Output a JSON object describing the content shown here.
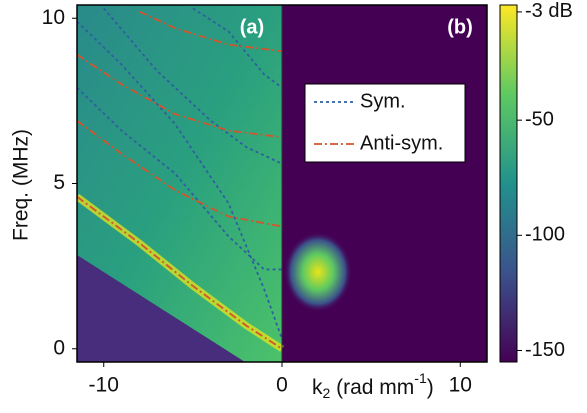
{
  "chart_data": {
    "type": "dispersion-map",
    "panel_labels": [
      "(a)",
      "(b)"
    ],
    "ylabel": "Freq. (MHz)",
    "xlabel": [
      "k",
      "2",
      " (rad mm",
      "-1",
      ")"
    ],
    "xlim": [
      -11.5,
      11.5
    ],
    "xticks": [
      -10,
      0,
      10
    ],
    "ylim": [
      -0.4,
      10.4
    ],
    "yticks": [
      0,
      5,
      10
    ],
    "colorbar": {
      "colormap": "viridis",
      "lim": [
        -155,
        0
      ],
      "ticks": [
        {
          "value": -3,
          "label": "-3 dB"
        },
        -50,
        -100,
        -150
      ]
    },
    "series": [
      {
        "name": "Sym.",
        "color": "#2f5f9e",
        "dash": "3,3",
        "lines": [
          {
            "x": [
              -11.5,
              -9,
              -6,
              -3,
              -1,
              0
            ],
            "values": [
              9.9,
              8.6,
              6.8,
              4.4,
              1.8,
              0.3
            ]
          },
          {
            "x": [
              -11.5,
              -9,
              -6,
              -3,
              -1,
              0
            ],
            "values": [
              7.9,
              6.6,
              5.3,
              3.4,
              2.4,
              2.4
            ]
          },
          {
            "x": [
              -10,
              -7,
              -4,
              -2,
              0
            ],
            "values": [
              10.3,
              8.4,
              6.9,
              6.1,
              5.6
            ]
          },
          {
            "x": [
              -5,
              -3,
              -1,
              0
            ],
            "values": [
              10.3,
              9.6,
              8.3,
              7.9
            ]
          }
        ]
      },
      {
        "name": "Anti-sym.",
        "color": "#d4552b",
        "dash": "8,3,2,3",
        "lines": [
          {
            "x": [
              -11.5,
              -8,
              -5,
              -2,
              0
            ],
            "values": [
              4.6,
              3.2,
              1.9,
              0.7,
              0
            ]
          },
          {
            "x": [
              -11.5,
              -9,
              -6,
              -3,
              0
            ],
            "values": [
              6.9,
              5.9,
              4.8,
              4.0,
              3.7
            ]
          },
          {
            "x": [
              -11.5,
              -9,
              -6,
              -3,
              0
            ],
            "values": [
              8.9,
              8.0,
              7.1,
              6.6,
              6.4
            ]
          },
          {
            "x": [
              -8,
              -6,
              -3,
              0
            ],
            "values": [
              10.2,
              9.7,
              9.2,
              9.0
            ]
          }
        ]
      }
    ]
  }
}
